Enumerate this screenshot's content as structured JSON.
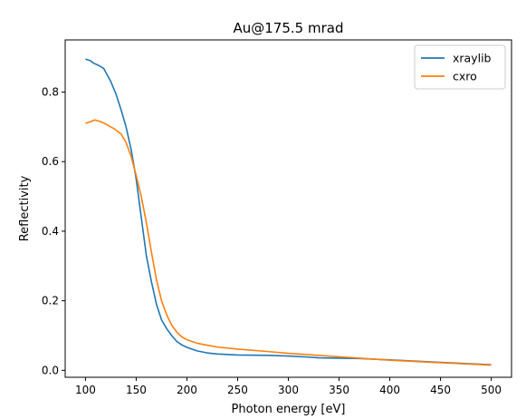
{
  "chart_data": {
    "type": "line",
    "title": "Au@175.5 mrad",
    "xlabel": "Photon energy [eV]",
    "ylabel": "Reflectivity",
    "xlim": [
      80,
      520
    ],
    "ylim": [
      -0.02,
      0.95
    ],
    "xticks": [
      100,
      150,
      200,
      250,
      300,
      350,
      400,
      450,
      500
    ],
    "yticks": [
      0.0,
      0.2,
      0.4,
      0.6,
      0.8
    ],
    "ytick_labels": [
      "0.0",
      "0.2",
      "0.4",
      "0.6",
      "0.8"
    ],
    "legend_position": "top-right",
    "grid": false,
    "series": [
      {
        "name": "xraylib",
        "color": "#1f77b4",
        "x": [
          100,
          105,
          108,
          112,
          118,
          125,
          130,
          135,
          140,
          145,
          150,
          155,
          160,
          165,
          170,
          175,
          180,
          185,
          190,
          195,
          200,
          210,
          220,
          230,
          250,
          280,
          300,
          320,
          330,
          350,
          370,
          400,
          450,
          500
        ],
        "y": [
          0.895,
          0.89,
          0.883,
          0.878,
          0.868,
          0.83,
          0.795,
          0.75,
          0.7,
          0.635,
          0.55,
          0.44,
          0.33,
          0.255,
          0.19,
          0.145,
          0.12,
          0.1,
          0.083,
          0.073,
          0.066,
          0.056,
          0.05,
          0.047,
          0.044,
          0.043,
          0.041,
          0.038,
          0.036,
          0.035,
          0.034,
          0.03,
          0.023,
          0.016
        ]
      },
      {
        "name": "cxro",
        "color": "#ff7f0e",
        "x": [
          100,
          105,
          109,
          115,
          120,
          128,
          135,
          140,
          145,
          150,
          155,
          160,
          165,
          170,
          175,
          180,
          185,
          190,
          195,
          200,
          210,
          220,
          230,
          250,
          280,
          300,
          320,
          350,
          380,
          400,
          450,
          500
        ],
        "y": [
          0.71,
          0.715,
          0.72,
          0.715,
          0.708,
          0.695,
          0.68,
          0.655,
          0.615,
          0.56,
          0.5,
          0.425,
          0.34,
          0.26,
          0.2,
          0.16,
          0.13,
          0.11,
          0.096,
          0.088,
          0.078,
          0.072,
          0.067,
          0.061,
          0.054,
          0.049,
          0.045,
          0.039,
          0.033,
          0.029,
          0.022,
          0.015
        ]
      }
    ]
  }
}
